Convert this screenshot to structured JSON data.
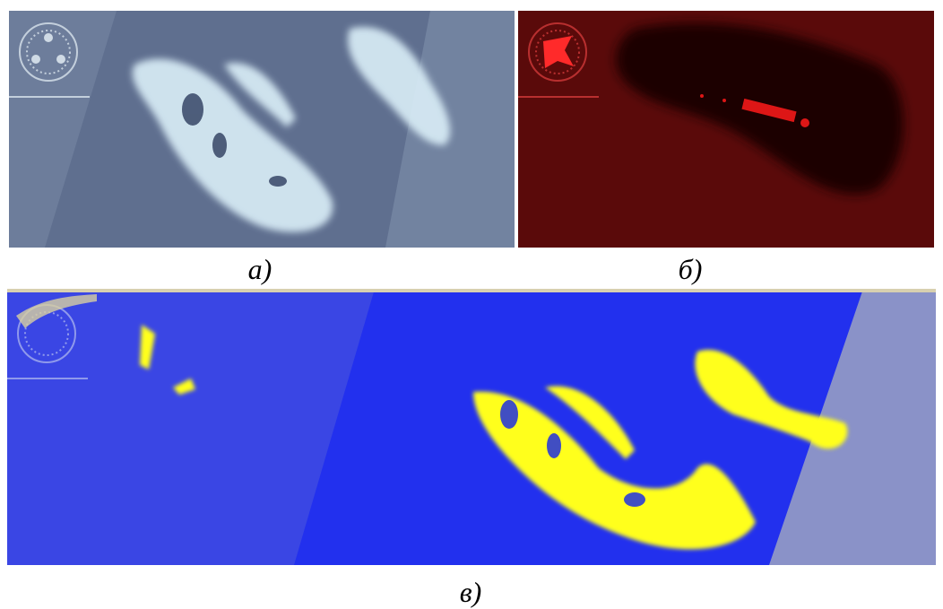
{
  "panels": [
    {
      "caption": "а)"
    },
    {
      "caption": "б)"
    },
    {
      "caption": "в)"
    }
  ]
}
